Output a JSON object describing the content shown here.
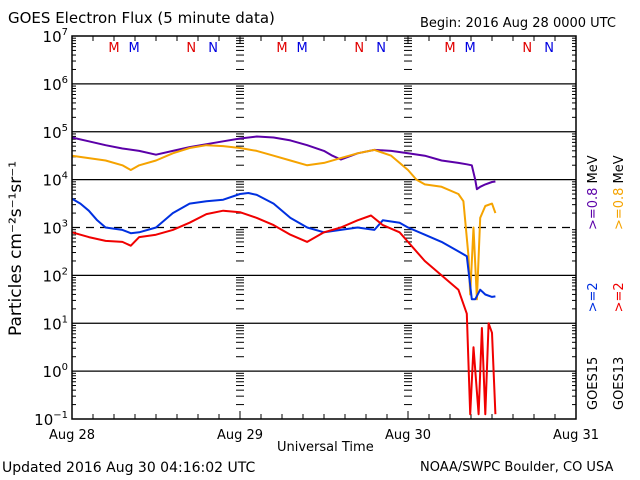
{
  "chart_data": {
    "type": "line",
    "title": "GOES Electron Flux (5 minute data)",
    "subtitle": "Begin: 2016 Aug 28 0000 UTC",
    "xlabel": "Universal Time",
    "ylabel": "Particles cm⁻²s⁻¹sr⁻¹",
    "yscale": "log",
    "ylim_exp": [
      -1,
      7
    ],
    "y_ticks": [
      {
        "base": "10",
        "exp": "7"
      },
      {
        "base": "10",
        "exp": "6"
      },
      {
        "base": "10",
        "exp": "5"
      },
      {
        "base": "10",
        "exp": "4"
      },
      {
        "base": "10",
        "exp": "3"
      },
      {
        "base": "10",
        "exp": "2"
      },
      {
        "base": "10",
        "exp": "1"
      },
      {
        "base": "10",
        "exp": "0"
      },
      {
        "base": "10",
        "exp": "−1"
      }
    ],
    "x_ticks": [
      "Aug 28",
      "Aug 29",
      "Aug 30",
      "Aug 31"
    ],
    "xlim_days": [
      0,
      3
    ],
    "threshold_line_exp": 3,
    "markers": [
      {
        "label": "M",
        "color": "#e00000",
        "day": 0.25
      },
      {
        "label": "M",
        "color": "#0000e0",
        "day": 0.37
      },
      {
        "label": "N",
        "color": "#e00000",
        "day": 0.71
      },
      {
        "label": "N",
        "color": "#0000e0",
        "day": 0.84
      },
      {
        "label": "M",
        "color": "#e00000",
        "day": 1.25
      },
      {
        "label": "M",
        "color": "#0000e0",
        "day": 1.37
      },
      {
        "label": "N",
        "color": "#e00000",
        "day": 1.71
      },
      {
        "label": "N",
        "color": "#0000e0",
        "day": 1.84
      },
      {
        "label": "M",
        "color": "#e00000",
        "day": 2.25
      },
      {
        "label": "M",
        "color": "#0000e0",
        "day": 2.37
      },
      {
        "label": "N",
        "color": "#e00000",
        "day": 2.71
      },
      {
        "label": "N",
        "color": "#0000e0",
        "day": 2.84
      }
    ],
    "legend": {
      "placement": "right",
      "goes15": {
        "label": "GOES15",
        "e2": ">=2",
        "e08": ">=0.8",
        "unit": "MeV"
      },
      "goes13": {
        "label": "GOES13",
        "e2": ">=2",
        "e08": ">=0.8",
        "unit": "MeV"
      }
    },
    "series": [
      {
        "name": "GOES15 >=0.8 MeV",
        "color": "#5b00a8",
        "points": [
          [
            0,
            4.88
          ],
          [
            0.1,
            4.8
          ],
          [
            0.2,
            4.72
          ],
          [
            0.3,
            4.65
          ],
          [
            0.4,
            4.6
          ],
          [
            0.5,
            4.52
          ],
          [
            0.6,
            4.6
          ],
          [
            0.7,
            4.68
          ],
          [
            0.8,
            4.74
          ],
          [
            0.9,
            4.8
          ],
          [
            1.0,
            4.86
          ],
          [
            1.1,
            4.9
          ],
          [
            1.2,
            4.88
          ],
          [
            1.3,
            4.82
          ],
          [
            1.4,
            4.72
          ],
          [
            1.5,
            4.6
          ],
          [
            1.55,
            4.5
          ],
          [
            1.6,
            4.42
          ],
          [
            1.7,
            4.55
          ],
          [
            1.8,
            4.62
          ],
          [
            1.9,
            4.6
          ],
          [
            2.0,
            4.55
          ],
          [
            2.1,
            4.5
          ],
          [
            2.2,
            4.4
          ],
          [
            2.3,
            4.35
          ],
          [
            2.35,
            4.32
          ],
          [
            2.38,
            4.3
          ],
          [
            2.4,
            4.0
          ],
          [
            2.41,
            3.8
          ],
          [
            2.43,
            3.85
          ],
          [
            2.46,
            3.9
          ],
          [
            2.5,
            3.95
          ],
          [
            2.52,
            3.96
          ]
        ]
      },
      {
        "name": "GOES13 >=0.8 MeV",
        "color": "#f5a300",
        "points": [
          [
            0,
            4.5
          ],
          [
            0.1,
            4.45
          ],
          [
            0.2,
            4.4
          ],
          [
            0.3,
            4.3
          ],
          [
            0.35,
            4.2
          ],
          [
            0.4,
            4.3
          ],
          [
            0.5,
            4.4
          ],
          [
            0.6,
            4.55
          ],
          [
            0.7,
            4.66
          ],
          [
            0.8,
            4.72
          ],
          [
            0.9,
            4.7
          ],
          [
            1.0,
            4.66
          ],
          [
            1.1,
            4.6
          ],
          [
            1.2,
            4.5
          ],
          [
            1.3,
            4.4
          ],
          [
            1.4,
            4.3
          ],
          [
            1.5,
            4.35
          ],
          [
            1.6,
            4.45
          ],
          [
            1.7,
            4.55
          ],
          [
            1.8,
            4.62
          ],
          [
            1.9,
            4.5
          ],
          [
            2.0,
            4.2
          ],
          [
            2.05,
            4.0
          ],
          [
            2.1,
            3.9
          ],
          [
            2.2,
            3.85
          ],
          [
            2.3,
            3.7
          ],
          [
            2.33,
            3.55
          ],
          [
            2.36,
            2.4
          ],
          [
            2.37,
            1.6
          ],
          [
            2.39,
            3.0
          ],
          [
            2.41,
            1.5
          ],
          [
            2.43,
            3.2
          ],
          [
            2.46,
            3.45
          ],
          [
            2.5,
            3.5
          ],
          [
            2.52,
            3.3
          ]
        ]
      },
      {
        "name": "GOES15 >=2 MeV",
        "color": "#0030e0",
        "points": [
          [
            0,
            3.6
          ],
          [
            0.05,
            3.5
          ],
          [
            0.1,
            3.35
          ],
          [
            0.15,
            3.15
          ],
          [
            0.2,
            3.0
          ],
          [
            0.3,
            2.95
          ],
          [
            0.35,
            2.88
          ],
          [
            0.4,
            2.9
          ],
          [
            0.5,
            3.0
          ],
          [
            0.6,
            3.3
          ],
          [
            0.7,
            3.5
          ],
          [
            0.8,
            3.55
          ],
          [
            0.9,
            3.58
          ],
          [
            1.0,
            3.7
          ],
          [
            1.05,
            3.72
          ],
          [
            1.1,
            3.68
          ],
          [
            1.2,
            3.5
          ],
          [
            1.3,
            3.2
          ],
          [
            1.4,
            3.0
          ],
          [
            1.5,
            2.9
          ],
          [
            1.6,
            2.95
          ],
          [
            1.7,
            3.0
          ],
          [
            1.8,
            2.95
          ],
          [
            1.85,
            3.15
          ],
          [
            1.95,
            3.1
          ],
          [
            2.0,
            3.0
          ],
          [
            2.1,
            2.85
          ],
          [
            2.2,
            2.7
          ],
          [
            2.3,
            2.5
          ],
          [
            2.35,
            2.4
          ],
          [
            2.38,
            1.5
          ],
          [
            2.4,
            1.5
          ],
          [
            2.43,
            1.7
          ],
          [
            2.46,
            1.6
          ],
          [
            2.5,
            1.55
          ],
          [
            2.52,
            1.56
          ]
        ]
      },
      {
        "name": "GOES13 >=2 MeV",
        "color": "#f00000",
        "points": [
          [
            0,
            2.9
          ],
          [
            0.1,
            2.8
          ],
          [
            0.2,
            2.72
          ],
          [
            0.3,
            2.7
          ],
          [
            0.35,
            2.62
          ],
          [
            0.4,
            2.8
          ],
          [
            0.5,
            2.85
          ],
          [
            0.6,
            2.95
          ],
          [
            0.7,
            3.1
          ],
          [
            0.8,
            3.28
          ],
          [
            0.9,
            3.35
          ],
          [
            1.0,
            3.32
          ],
          [
            1.1,
            3.2
          ],
          [
            1.2,
            3.05
          ],
          [
            1.3,
            2.85
          ],
          [
            1.4,
            2.7
          ],
          [
            1.5,
            2.9
          ],
          [
            1.6,
            3.0
          ],
          [
            1.7,
            3.15
          ],
          [
            1.78,
            3.25
          ],
          [
            1.85,
            3.05
          ],
          [
            1.95,
            2.9
          ],
          [
            2.0,
            2.7
          ],
          [
            2.1,
            2.3
          ],
          [
            2.2,
            2.0
          ],
          [
            2.3,
            1.7
          ],
          [
            2.35,
            1.2
          ],
          [
            2.37,
            -0.9
          ],
          [
            2.39,
            0.5
          ],
          [
            2.42,
            -0.9
          ],
          [
            2.44,
            0.9
          ],
          [
            2.46,
            -0.9
          ],
          [
            2.48,
            1.0
          ],
          [
            2.5,
            0.8
          ],
          [
            2.52,
            -0.9
          ]
        ]
      }
    ]
  },
  "footer": {
    "updated": "Updated 2016 Aug 30 04:16:02 UTC",
    "credit": "NOAA/SWPC Boulder, CO USA"
  }
}
